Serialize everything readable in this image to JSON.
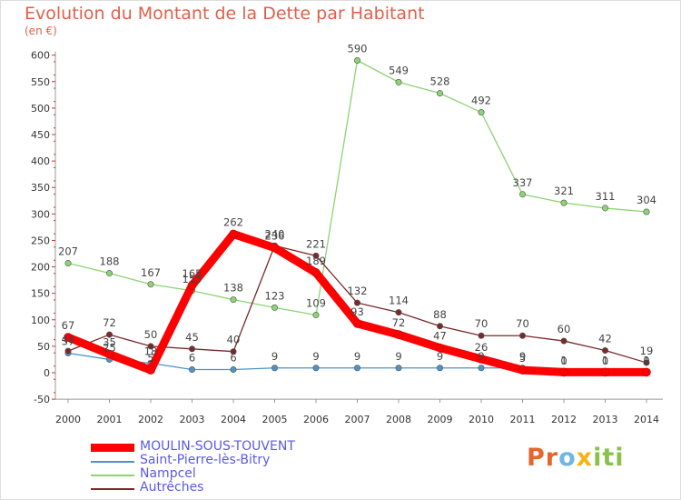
{
  "title": "Evolution du Montant de la Dette par Habitant",
  "subtitle": "(en €)",
  "logo_text": "Proxiti",
  "chart_data": {
    "type": "line",
    "ylim": [
      -50,
      600
    ],
    "ytick_step": 50,
    "grid": false,
    "legend_position": "bottom-left",
    "categories": [
      "2000",
      "2001",
      "2002",
      "2003",
      "2004",
      "2005",
      "2006",
      "2007",
      "2008",
      "2009",
      "2010",
      "2011",
      "2012",
      "2013",
      "2014"
    ],
    "series": [
      {
        "name": "MOULIN-SOUS-TOUVENT",
        "color": "#ff0000",
        "values": [
          67,
          35,
          5,
          165,
          262,
          236,
          189,
          93,
          72,
          47,
          26,
          5,
          1,
          1,
          1
        ],
        "labels": [
          "67",
          "35",
          "5",
          "165",
          "262",
          "236",
          "189",
          "93",
          "72",
          "47",
          "26",
          "5",
          "1",
          "1",
          "1"
        ]
      },
      {
        "name": "Saint-Pierre-lès-Bitry",
        "color": "#4e93c8",
        "values": [
          37,
          25,
          18,
          6,
          6,
          9,
          9,
          9,
          9,
          9,
          9,
          9,
          0,
          0,
          0
        ],
        "labels": [
          "37",
          "25",
          "18",
          "6",
          "6",
          "9",
          "9",
          "9",
          "9",
          "9",
          "9",
          "9",
          "0",
          "0",
          "0"
        ]
      },
      {
        "name": "Nampcel",
        "color": "#8cd474",
        "values": [
          207,
          188,
          167,
          155,
          138,
          123,
          109,
          590,
          549,
          528,
          492,
          337,
          321,
          311,
          304
        ],
        "labels": [
          "207",
          "188",
          "167",
          "155",
          "138",
          "123",
          "109",
          "590",
          "549",
          "528",
          "492",
          "337",
          "321",
          "311",
          "304"
        ]
      },
      {
        "name": "Autrêches",
        "color": "#7a2a2a",
        "values": [
          41,
          72,
          50,
          45,
          40,
          240,
          221,
          132,
          114,
          88,
          70,
          70,
          60,
          42,
          19
        ],
        "labels": [
          "41",
          "72",
          "50",
          "45",
          "40",
          "240",
          "221",
          "132",
          "114",
          "88",
          "70",
          "70",
          "60",
          "42",
          "19"
        ]
      }
    ]
  },
  "legend": [
    {
      "label": "MOULIN-SOUS-TOUVENT",
      "color": "#ff0000",
      "thick": true
    },
    {
      "label": "Saint-Pierre-lès-Bitry",
      "color": "#4e93c8",
      "thick": false
    },
    {
      "label": "Nampcel",
      "color": "#8cd474",
      "thick": false
    },
    {
      "label": "Autrêches",
      "color": "#7a2a2a",
      "thick": false
    }
  ]
}
